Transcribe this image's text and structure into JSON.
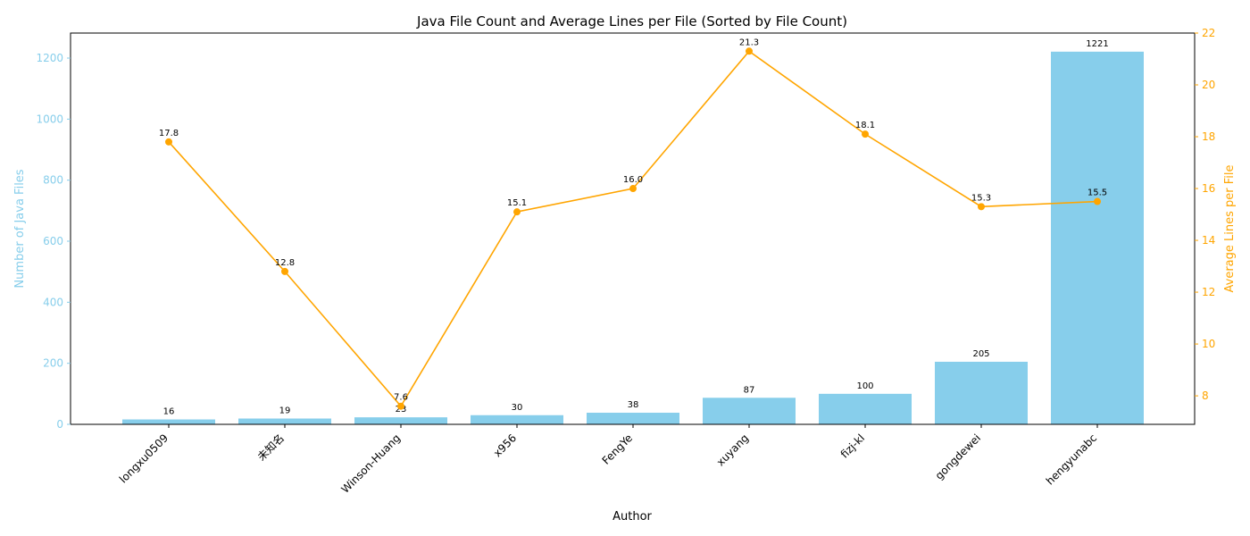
{
  "chart_data": {
    "type": "bar",
    "title": "Java File Count and Average Lines per File (Sorted by File Count)",
    "xlabel": "Author",
    "ylabel": "Number of Java Files",
    "y2label": "Average Lines per File",
    "categories": [
      "longxu0509",
      "未知名",
      "Winson-Huang",
      "x956",
      "FengYe",
      "xuyang",
      "fizj-kl",
      "gongdewei",
      "hengyunabc"
    ],
    "series": [
      {
        "type": "bar",
        "axis": "left",
        "color": "#87CEEB",
        "values": [
          16,
          19,
          23,
          30,
          38,
          87,
          100,
          205,
          1221
        ],
        "labels": [
          "16",
          "19",
          "23",
          "30",
          "38",
          "87",
          "100",
          "205",
          "1221"
        ]
      },
      {
        "type": "line",
        "axis": "right",
        "color": "#FFA500",
        "values": [
          17.8,
          12.8,
          7.6,
          15.1,
          16.0,
          21.3,
          18.1,
          15.3,
          15.5
        ],
        "labels": [
          "17.8",
          "12.8",
          "7.6",
          "15.1",
          "16.0",
          "21.3",
          "18.1",
          "15.3",
          "15.5"
        ]
      }
    ],
    "ylim": [
      0,
      1282
    ],
    "y2lim": [
      6.9,
      22.0
    ],
    "yticks": [
      0,
      200,
      400,
      600,
      800,
      1000,
      1200
    ],
    "y2ticks": [
      8,
      10,
      12,
      14,
      16,
      18,
      20,
      22
    ],
    "grid": false,
    "legend": "none",
    "colors": {
      "left_axis": "#87CEEB",
      "right_axis": "#FFA500"
    }
  }
}
